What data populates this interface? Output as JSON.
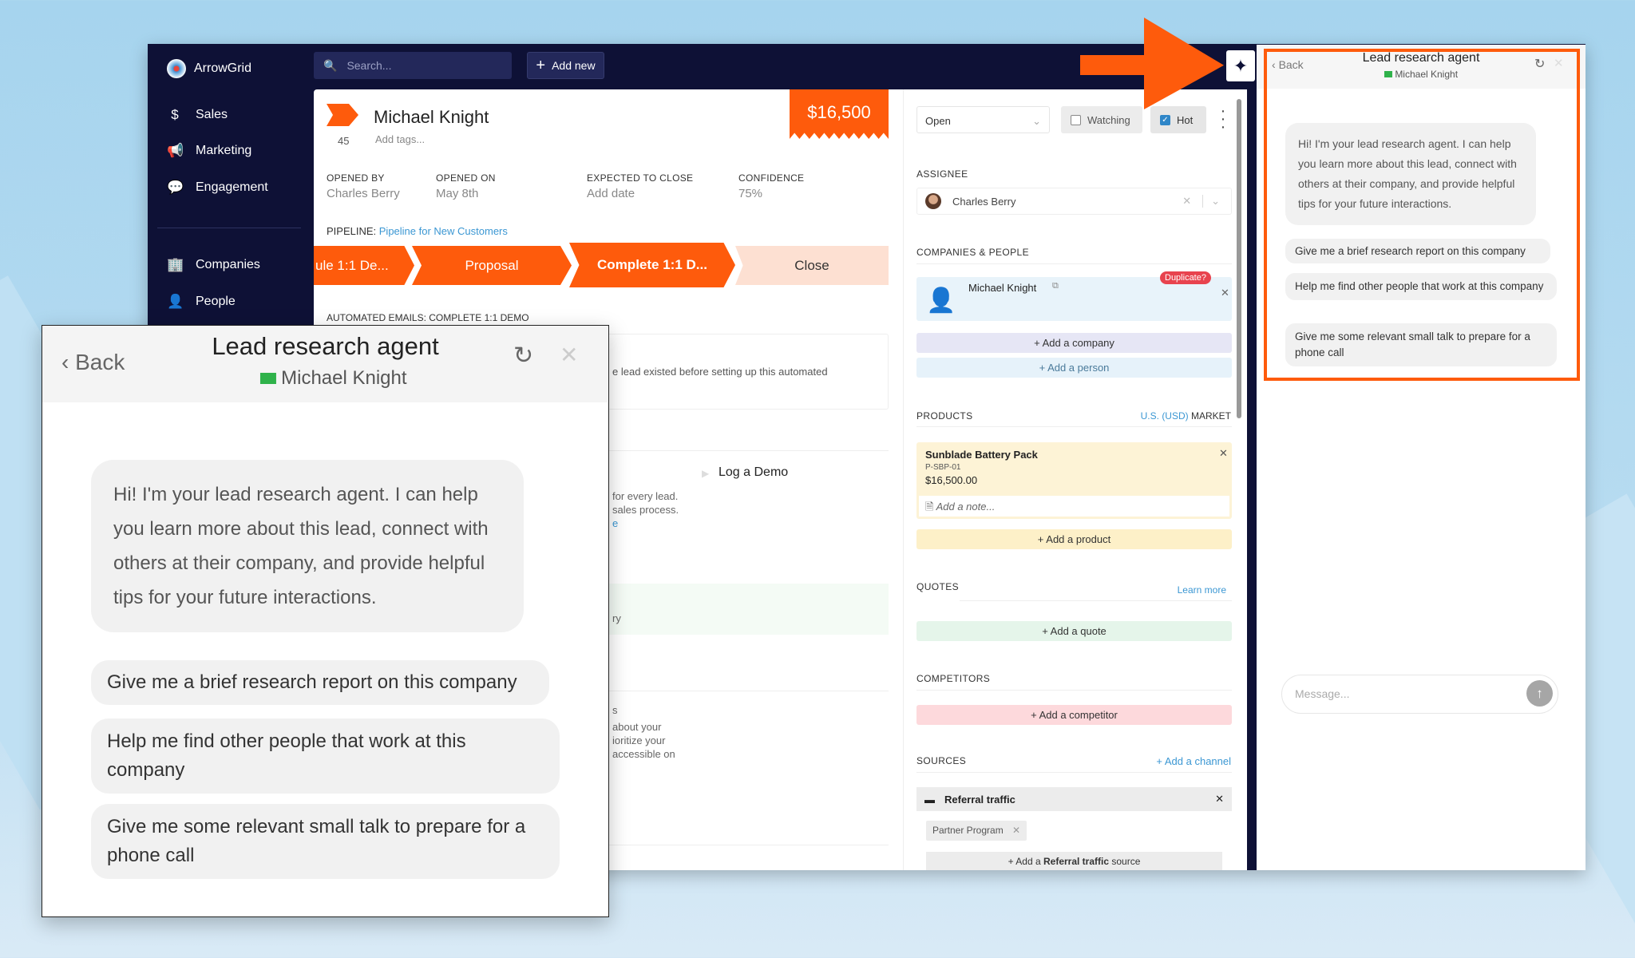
{
  "colors": {
    "brand_orange": "#fe5b0c",
    "navy": "#0e1136",
    "link_blue": "#3b97d3"
  },
  "app": {
    "name": "ArrowGrid"
  },
  "sidebar": {
    "items": [
      {
        "label": "Sales",
        "icon": "dollar-icon"
      },
      {
        "label": "Marketing",
        "icon": "megaphone-icon"
      },
      {
        "label": "Engagement",
        "icon": "chat-icon"
      },
      {
        "label": "Companies",
        "icon": "building-icon"
      },
      {
        "label": "People",
        "icon": "person-icon"
      }
    ]
  },
  "topbar": {
    "search_placeholder": "Search...",
    "add_new": "Add new"
  },
  "deal": {
    "name": "Michael Knight",
    "score": "45",
    "tags_placeholder": "Add tags...",
    "value": "$16,500",
    "fields": [
      {
        "label": "Opened by",
        "value": "Charles Berry"
      },
      {
        "label": "Opened on",
        "value": "May 8th"
      },
      {
        "label": "Expected to close",
        "value": "Add date"
      },
      {
        "label": "Confidence",
        "value": "75%"
      }
    ],
    "pipeline_label": "PIPELINE:",
    "pipeline_name": "Pipeline for New Customers",
    "stages": [
      "ule 1:1 De...",
      "Proposal",
      "Complete 1:1 D...",
      "Close"
    ],
    "automated_label": "AUTOMATED EMAILS: COMPLETE 1:1 DEMO",
    "automated_text": "e lead existed before setting up this automated",
    "log_demo": "Log a Demo",
    "text_a": [
      "for every lead.",
      "sales process.",
      "e"
    ],
    "text_b": "ry",
    "text_c": [
      "s",
      "about your",
      "ioritize your",
      "accessible on"
    ]
  },
  "right": {
    "status": "Open",
    "watching": "Watching",
    "hot": "Hot",
    "hot_checked": true,
    "watching_checked": false,
    "assignee_label": "ASSIGNEE",
    "assignee": "Charles Berry",
    "cp_label": "COMPANIES & PEOPLE",
    "person": "Michael Knight",
    "duplicate": "Duplicate?",
    "add_company": "+ Add a company",
    "add_person": "+ Add a person",
    "products_label": "PRODUCTS",
    "market_currency": "U.S. (USD)",
    "market": "MARKET",
    "product": {
      "name": "Sunblade Battery Pack",
      "sku": "P-SBP-01",
      "price": "$16,500.00",
      "note_placeholder": "Add a note..."
    },
    "add_product": "+ Add a product",
    "quotes_label": "QUOTES",
    "learn_more": "Learn more",
    "add_quote": "+ Add a quote",
    "competitors_label": "COMPETITORS",
    "add_competitor": "+ Add a competitor",
    "sources_label": "SOURCES",
    "add_channel": "+ Add a channel",
    "source": "Referral traffic",
    "source_chip": "Partner Program",
    "add_source_pre": "+ Add a",
    "add_source_bold": "Referral traffic",
    "add_source_post": "source"
  },
  "agent": {
    "back": "Back",
    "title": "Lead research agent",
    "lead": "Michael Knight",
    "greeting": "Hi! I'm your lead research agent. I can help you learn more about this lead, connect with others at their company, and provide helpful tips for your future interactions.",
    "suggestions": [
      "Give me a brief research report on this company",
      "Help me find other people that work at this company",
      "Give me some relevant small talk to prepare for a phone call"
    ],
    "message_placeholder": "Message..."
  }
}
